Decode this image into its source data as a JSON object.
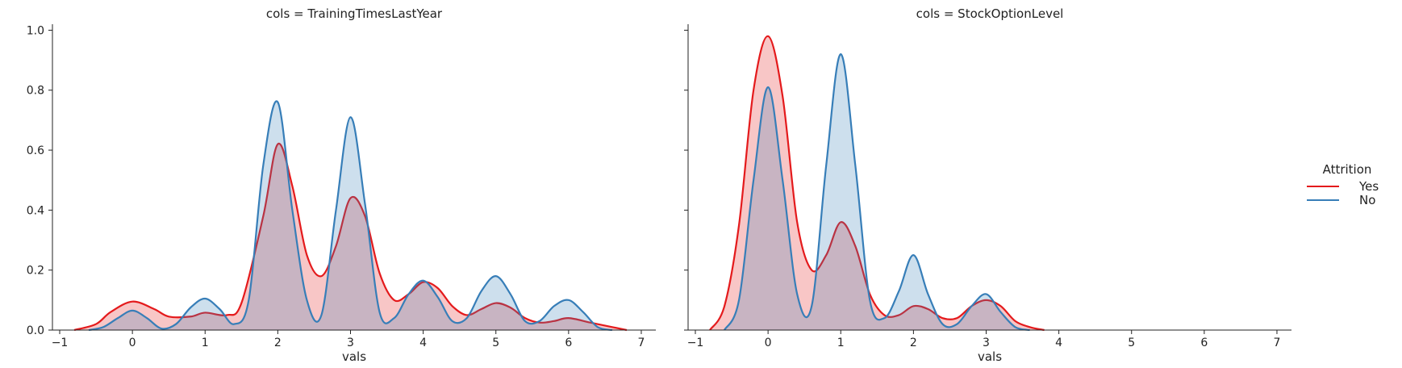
{
  "figure": {
    "x_ticks": [
      "−1",
      "0",
      "1",
      "2",
      "3",
      "4",
      "5",
      "6",
      "7"
    ],
    "y_ticks": [
      "0.0",
      "0.2",
      "0.4",
      "0.6",
      "0.8",
      "1.0"
    ]
  },
  "legend": {
    "title": "Attrition",
    "items": [
      {
        "label": "Yes",
        "color": "#e41a1c"
      },
      {
        "label": "No",
        "color": "#377eb8"
      }
    ]
  },
  "chart_data": [
    {
      "type": "area",
      "title": "cols = TrainingTimesLastYear",
      "xlabel": "vals",
      "ylabel": "",
      "xlim": [
        -1.1,
        7.2
      ],
      "ylim": [
        0,
        1.02
      ],
      "x_ticks": [
        -1,
        0,
        1,
        2,
        3,
        4,
        5,
        6,
        7
      ],
      "y_ticks": [
        0.0,
        0.2,
        0.4,
        0.6,
        0.8,
        1.0
      ],
      "legend_position": "right",
      "series": [
        {
          "name": "Yes",
          "color": "#e41a1c",
          "x": [
            -0.8,
            -0.5,
            -0.3,
            0.0,
            0.3,
            0.5,
            0.8,
            1.0,
            1.3,
            1.5,
            1.8,
            2.0,
            2.2,
            2.4,
            2.6,
            2.8,
            3.0,
            3.2,
            3.4,
            3.6,
            3.8,
            4.0,
            4.2,
            4.4,
            4.6,
            4.8,
            5.0,
            5.2,
            5.4,
            5.6,
            5.8,
            6.0,
            6.3,
            6.6,
            6.8
          ],
          "values": [
            0.0,
            0.02,
            0.06,
            0.095,
            0.07,
            0.045,
            0.045,
            0.058,
            0.05,
            0.09,
            0.38,
            0.62,
            0.48,
            0.25,
            0.18,
            0.28,
            0.44,
            0.38,
            0.19,
            0.1,
            0.12,
            0.16,
            0.14,
            0.08,
            0.05,
            0.07,
            0.09,
            0.075,
            0.04,
            0.025,
            0.03,
            0.04,
            0.025,
            0.01,
            0.0
          ]
        },
        {
          "name": "No",
          "color": "#377eb8",
          "x": [
            -0.6,
            -0.4,
            -0.2,
            0.0,
            0.2,
            0.4,
            0.6,
            0.8,
            1.0,
            1.2,
            1.4,
            1.6,
            1.8,
            2.0,
            2.2,
            2.4,
            2.6,
            2.8,
            3.0,
            3.2,
            3.4,
            3.6,
            3.8,
            4.0,
            4.2,
            4.4,
            4.6,
            4.8,
            5.0,
            5.2,
            5.4,
            5.6,
            5.8,
            6.0,
            6.2,
            6.4,
            6.6
          ],
          "values": [
            0.0,
            0.01,
            0.04,
            0.065,
            0.04,
            0.005,
            0.02,
            0.075,
            0.105,
            0.07,
            0.02,
            0.1,
            0.55,
            0.76,
            0.4,
            0.1,
            0.05,
            0.4,
            0.71,
            0.42,
            0.06,
            0.04,
            0.12,
            0.165,
            0.11,
            0.03,
            0.04,
            0.13,
            0.18,
            0.12,
            0.03,
            0.03,
            0.08,
            0.1,
            0.06,
            0.01,
            0.0
          ]
        }
      ]
    },
    {
      "type": "area",
      "title": "cols = StockOptionLevel",
      "xlabel": "vals",
      "ylabel": "",
      "xlim": [
        -1.1,
        7.2
      ],
      "ylim": [
        0,
        1.02
      ],
      "x_ticks": [
        -1,
        0,
        1,
        2,
        3,
        4,
        5,
        6,
        7
      ],
      "y_ticks": [
        0.0,
        0.2,
        0.4,
        0.6,
        0.8,
        1.0
      ],
      "series": [
        {
          "name": "Yes",
          "color": "#e41a1c",
          "x": [
            -0.8,
            -0.6,
            -0.4,
            -0.2,
            0.0,
            0.2,
            0.4,
            0.6,
            0.8,
            1.0,
            1.2,
            1.4,
            1.6,
            1.8,
            2.0,
            2.2,
            2.4,
            2.6,
            2.8,
            3.0,
            3.2,
            3.4,
            3.6,
            3.8
          ],
          "values": [
            0.0,
            0.08,
            0.35,
            0.8,
            0.98,
            0.78,
            0.36,
            0.2,
            0.25,
            0.36,
            0.28,
            0.12,
            0.05,
            0.05,
            0.08,
            0.07,
            0.04,
            0.04,
            0.08,
            0.1,
            0.08,
            0.03,
            0.01,
            0.0
          ]
        },
        {
          "name": "No",
          "color": "#377eb8",
          "x": [
            -0.6,
            -0.4,
            -0.2,
            0.0,
            0.2,
            0.4,
            0.6,
            0.8,
            1.0,
            1.2,
            1.4,
            1.6,
            1.8,
            2.0,
            2.2,
            2.4,
            2.6,
            2.8,
            3.0,
            3.2,
            3.4,
            3.6
          ],
          "values": [
            0.0,
            0.1,
            0.5,
            0.81,
            0.5,
            0.12,
            0.08,
            0.55,
            0.92,
            0.55,
            0.1,
            0.04,
            0.13,
            0.25,
            0.12,
            0.02,
            0.02,
            0.08,
            0.12,
            0.06,
            0.01,
            0.0
          ]
        }
      ]
    }
  ]
}
